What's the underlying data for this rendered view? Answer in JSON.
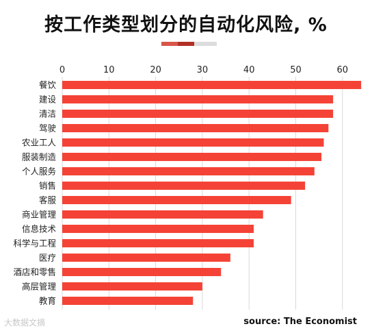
{
  "title": "按工作类型划分的自动化风险, %",
  "source": "source: The Economist",
  "watermark": "大数据文摘",
  "colors": {
    "bar": "#f44336",
    "accent_light": "#d9564a",
    "accent_dark": "#b22f25",
    "accent_grey": "#dcdcdc",
    "grid": "#d9d9d9",
    "text": "#222222"
  },
  "chart_data": {
    "type": "bar",
    "orientation": "horizontal",
    "categories": [
      "餐饮",
      "建设",
      "清洁",
      "驾驶",
      "农业工人",
      "服装制造",
      "个人服务",
      "销售",
      "客服",
      "商业管理",
      "信息技术",
      "科学与工程",
      "医疗",
      "酒店和零售",
      "高层管理",
      "教育"
    ],
    "values": [
      64,
      58,
      58,
      57,
      56,
      55.5,
      54,
      52,
      49,
      43,
      41,
      41,
      36,
      34,
      30,
      28
    ],
    "xticks": [
      0,
      10,
      20,
      30,
      40,
      50,
      60
    ],
    "xlim": [
      0,
      64
    ],
    "grid": true,
    "xaxis_position": "top"
  }
}
